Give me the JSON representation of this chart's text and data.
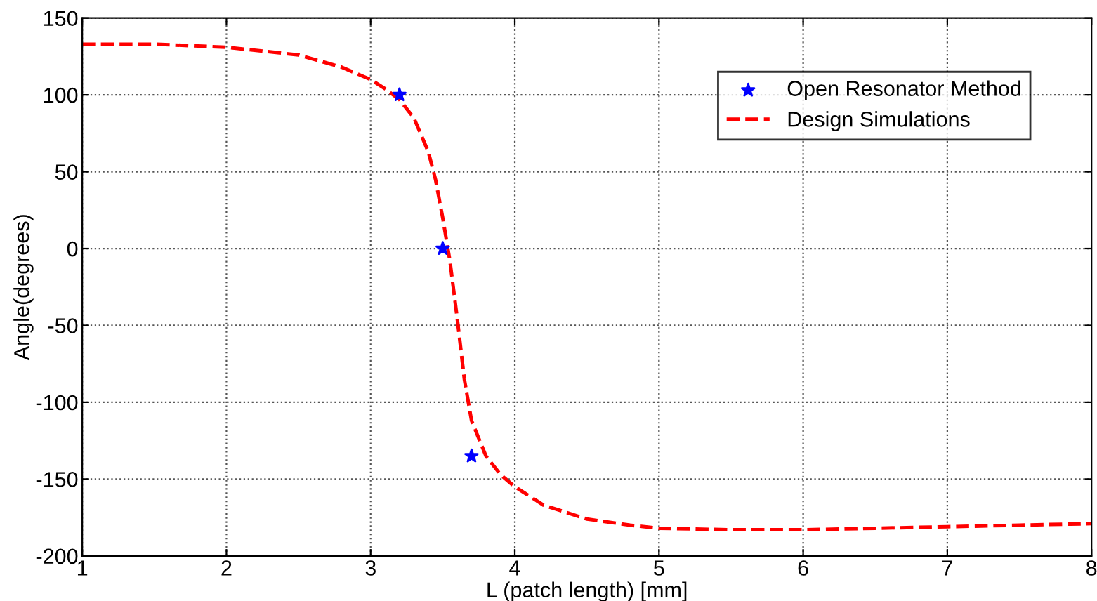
{
  "chart_data": {
    "type": "line",
    "xlabel": "L (patch length) [mm]",
    "ylabel": "Angle(degrees)",
    "xlim": [
      1,
      8
    ],
    "xticks": [
      1,
      2,
      3,
      4,
      5,
      6,
      7,
      8
    ],
    "ylim": [
      -200,
      150
    ],
    "yticks": [
      -200,
      -150,
      -100,
      -50,
      0,
      50,
      100,
      150
    ],
    "grid": true,
    "legend": "top right",
    "series": [
      {
        "name": "Open Resonator Method",
        "type": "scatter",
        "color": "#0000ff",
        "marker": "star",
        "x": [
          3.2,
          3.5,
          3.7
        ],
        "values": [
          100,
          0,
          -135
        ]
      },
      {
        "name": "Design Simulations",
        "color": "#ff0000",
        "line_style": "dashed",
        "x": [
          1,
          1.5,
          2,
          2.5,
          2.8,
          3,
          3.1,
          3.2,
          3.3,
          3.4,
          3.45,
          3.5,
          3.55,
          3.6,
          3.65,
          3.7,
          3.8,
          3.9,
          4,
          4.2,
          4.5,
          4.8,
          5,
          5.5,
          6,
          6.5,
          7,
          7.5,
          8
        ],
        "values": [
          133,
          133,
          131,
          126,
          118,
          110,
          104,
          97,
          85,
          63,
          45,
          20,
          -8,
          -45,
          -85,
          -112,
          -135,
          -147,
          -155,
          -167,
          -176,
          -180,
          -182,
          -183,
          -183,
          -182,
          -181,
          -180,
          -179
        ]
      }
    ]
  }
}
